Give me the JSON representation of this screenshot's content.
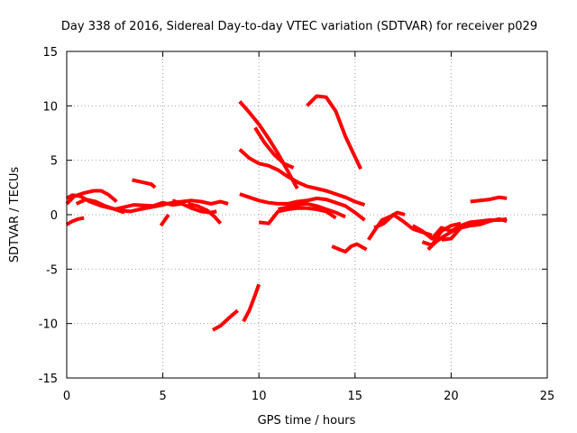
{
  "chart_data": {
    "type": "line",
    "title": "Day 338 of 2016, Sidereal Day-to-day VTEC variation (SDTVAR) for receiver p029",
    "xlabel": "GPS time / hours",
    "ylabel": "SDTVAR / TECUs",
    "xlim": [
      0,
      25
    ],
    "ylim": [
      -15,
      15
    ],
    "xticks": [
      0,
      5,
      10,
      15,
      20,
      25
    ],
    "xtick_labels": [
      "0",
      "5",
      "10",
      "15",
      "20",
      "25"
    ],
    "yticks": [
      -15,
      -10,
      -5,
      0,
      5,
      10,
      15
    ],
    "ytick_labels": [
      "-15",
      "-10",
      "-5",
      "0",
      "5",
      "10",
      "15"
    ],
    "grid": true,
    "color": "#ff0000",
    "series": [
      {
        "name": "s1",
        "x": [
          0.0,
          0.3,
          0.7,
          1.2,
          1.8,
          2.3,
          2.8,
          3.3,
          3.8,
          4.4,
          5.0,
          5.5,
          6.0,
          6.5,
          7.0,
          7.5,
          8.0,
          8.4
        ],
        "y": [
          1.5,
          1.8,
          1.7,
          1.2,
          0.8,
          0.6,
          0.4,
          0.3,
          0.5,
          0.7,
          0.9,
          1.1,
          1.2,
          1.3,
          1.2,
          1.0,
          1.2,
          1.0
        ]
      },
      {
        "name": "s2",
        "x": [
          0.0,
          0.4,
          0.9,
          1.4,
          1.8,
          2.2,
          2.6
        ],
        "y": [
          1.0,
          1.7,
          2.0,
          2.2,
          2.2,
          1.8,
          1.2
        ]
      },
      {
        "name": "s3",
        "x": [
          0.5,
          1.0,
          1.5,
          2.0,
          2.5,
          3.0
        ],
        "y": [
          1.0,
          1.4,
          1.2,
          0.8,
          0.5,
          0.2
        ]
      },
      {
        "name": "s4",
        "x": [
          0.0,
          0.3,
          0.6,
          0.9
        ],
        "y": [
          -0.9,
          -0.6,
          -0.4,
          -0.3
        ]
      },
      {
        "name": "s5",
        "x": [
          3.4,
          3.9,
          4.4,
          4.6
        ],
        "y": [
          3.2,
          3.0,
          2.8,
          2.5
        ]
      },
      {
        "name": "s6",
        "x": [
          2.5,
          3.5,
          4.5,
          5.0,
          5.5,
          6.0
        ],
        "y": [
          0.5,
          0.9,
          0.8,
          1.1,
          0.9,
          1.0
        ]
      },
      {
        "name": "s7",
        "x": [
          5.5,
          6.0,
          6.5,
          7.0,
          7.5,
          7.8
        ],
        "y": [
          1.3,
          1.0,
          0.6,
          0.3,
          0.2,
          0.3
        ]
      },
      {
        "name": "s8",
        "x": [
          6.3,
          6.8,
          7.3,
          7.7,
          8.0
        ],
        "y": [
          1.0,
          0.8,
          0.4,
          -0.2,
          -0.8
        ]
      },
      {
        "name": "s9",
        "x": [
          4.9,
          5.1,
          5.3
        ],
        "y": [
          -1.0,
          -0.5,
          0.0
        ]
      },
      {
        "name": "s10",
        "x": [
          7.6,
          8.0,
          8.5,
          8.9
        ],
        "y": [
          -10.6,
          -10.2,
          -9.4,
          -8.8
        ]
      },
      {
        "name": "s11",
        "x": [
          9.2,
          9.5,
          9.8,
          10.0
        ],
        "y": [
          -9.8,
          -8.8,
          -7.4,
          -6.4
        ]
      },
      {
        "name": "s12",
        "x": [
          9.0,
          9.5,
          10.0,
          10.5,
          11.0,
          11.5,
          12.0
        ],
        "y": [
          10.4,
          9.4,
          8.3,
          7.0,
          5.6,
          4.0,
          2.4
        ]
      },
      {
        "name": "s13",
        "x": [
          9.8,
          10.3,
          10.8,
          11.3,
          11.8
        ],
        "y": [
          8.0,
          6.6,
          5.5,
          4.7,
          4.3
        ]
      },
      {
        "name": "s14",
        "x": [
          9.0,
          9.5,
          10.0,
          10.5,
          11.0,
          11.5,
          12.0,
          12.5,
          13.0,
          13.5,
          14.0,
          14.5,
          15.0,
          15.5
        ],
        "y": [
          6.0,
          5.2,
          4.7,
          4.5,
          4.1,
          3.5,
          3.0,
          2.6,
          2.4,
          2.2,
          1.9,
          1.6,
          1.2,
          0.9
        ]
      },
      {
        "name": "s15",
        "x": [
          9.0,
          9.5,
          10.0,
          10.5,
          11.0,
          11.5,
          12.0,
          12.5,
          13.0,
          13.5,
          14.0,
          14.5,
          15.0,
          15.5
        ],
        "y": [
          1.9,
          1.6,
          1.3,
          1.1,
          1.0,
          1.0,
          1.2,
          1.3,
          1.5,
          1.4,
          1.1,
          0.8,
          0.2,
          -0.5
        ]
      },
      {
        "name": "s16",
        "x": [
          10.0,
          10.5,
          11.0,
          11.5,
          12.0,
          12.5,
          13.0,
          13.5,
          14.0
        ],
        "y": [
          -0.7,
          -0.8,
          0.3,
          0.5,
          0.6,
          0.6,
          0.5,
          0.3,
          -0.3
        ]
      },
      {
        "name": "s17",
        "x": [
          11.0,
          11.5,
          12.0,
          12.5,
          13.0,
          13.5,
          14.0,
          14.5
        ],
        "y": [
          0.5,
          0.7,
          0.9,
          1.0,
          0.8,
          0.5,
          0.2,
          -0.2
        ]
      },
      {
        "name": "s18",
        "x": [
          12.5,
          13.0,
          13.5,
          14.0,
          14.5,
          15.0,
          15.3
        ],
        "y": [
          10.0,
          10.9,
          10.8,
          9.5,
          7.2,
          5.3,
          4.2
        ]
      },
      {
        "name": "s19",
        "x": [
          13.8,
          14.2,
          14.5,
          14.8,
          15.1,
          15.4,
          15.6
        ],
        "y": [
          -2.9,
          -3.2,
          -3.4,
          -2.9,
          -2.7,
          -3.0,
          -3.2
        ]
      },
      {
        "name": "s20",
        "x": [
          15.7,
          16.0,
          16.4,
          16.8,
          17.2,
          17.6
        ],
        "y": [
          -2.3,
          -1.5,
          -0.5,
          -0.2,
          0.2,
          0.0
        ]
      },
      {
        "name": "s21",
        "x": [
          16.0,
          16.5,
          17.0,
          17.5,
          18.0,
          18.5,
          19.0
        ],
        "y": [
          -1.2,
          -0.8,
          0.0,
          -0.6,
          -1.3,
          -1.6,
          -1.9
        ]
      },
      {
        "name": "s22",
        "x": [
          18.0,
          18.5,
          19.0,
          19.5,
          20.0,
          20.5,
          21.0
        ],
        "y": [
          -1.0,
          -1.5,
          -2.2,
          -1.2,
          -1.5,
          -1.0,
          -0.7
        ]
      },
      {
        "name": "s23",
        "x": [
          18.5,
          19.0,
          19.5,
          20.0,
          20.5
        ],
        "y": [
          -2.5,
          -2.8,
          -1.5,
          -1.0,
          -0.8
        ]
      },
      {
        "name": "s24",
        "x": [
          18.8,
          19.2,
          19.6,
          20.0,
          20.5,
          21.0,
          21.5,
          22.0,
          22.5,
          22.9
        ],
        "y": [
          -3.2,
          -2.5,
          -2.0,
          -1.6,
          -1.0,
          -0.7,
          -0.6,
          -0.5,
          -0.5,
          -0.4
        ]
      },
      {
        "name": "s25",
        "x": [
          19.5,
          20.0,
          20.5,
          21.0,
          21.5,
          22.0,
          22.5,
          22.9
        ],
        "y": [
          -2.3,
          -2.2,
          -1.2,
          -1.0,
          -0.9,
          -0.6,
          -0.4,
          -0.6
        ]
      },
      {
        "name": "s26",
        "x": [
          21.0,
          21.5,
          22.0,
          22.5,
          22.9
        ],
        "y": [
          1.2,
          1.3,
          1.4,
          1.6,
          1.5
        ]
      }
    ]
  }
}
